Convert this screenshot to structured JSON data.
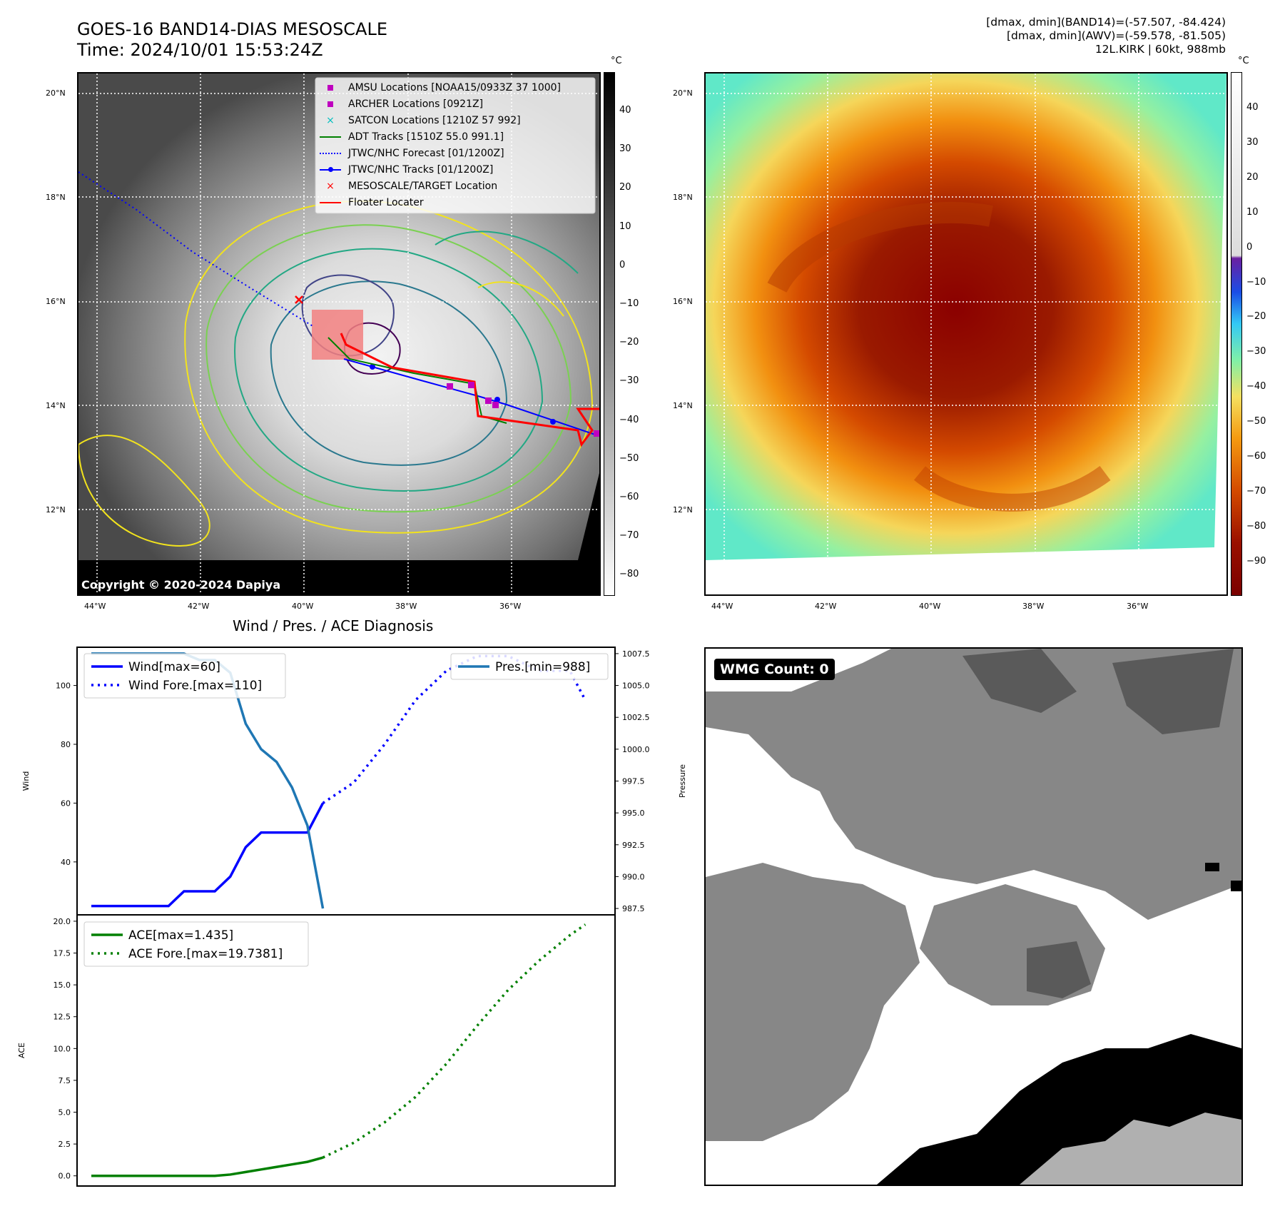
{
  "header": {
    "title_line1": "GOES-16 BAND14-DIAS MESOSCALE",
    "title_line2": "Time: 2024/10/01 15:53:24Z",
    "info_line1": "[dmax, dmin](BAND14)=(-57.507, -84.424)",
    "info_line2": "[dmax, dmin](AWV)=(-59.578, -81.505)",
    "info_line3": "12L.KIRK | 60kt, 988mb"
  },
  "map_left": {
    "legend": [
      {
        "label": "AMSU Locations [NOAA15/0933Z 37 1000]",
        "marker": "square",
        "color": "#bf00bf"
      },
      {
        "label": "ARCHER Locations [0921Z]",
        "marker": "square",
        "color": "#bf00bf"
      },
      {
        "label": "SATCON Locations [1210Z 57 992]",
        "marker": "x",
        "color": "#00bfbf"
      },
      {
        "label": "ADT Tracks [1510Z 55.0 991.1]",
        "marker": "line",
        "color": "#008000"
      },
      {
        "label": "JTWC/NHC Forecast [01/1200Z]",
        "marker": "dotted",
        "color": "#0000ff"
      },
      {
        "label": "JTWC/NHC Tracks [01/1200Z]",
        "marker": "line-dot",
        "color": "#0000ff"
      },
      {
        "label": "MESOSCALE/TARGET Location",
        "marker": "x",
        "color": "#ff0000"
      },
      {
        "label": "Floater Locater",
        "marker": "line",
        "color": "#ff0000"
      }
    ],
    "copyright": "Copyright © 2020-2024 Dapiya",
    "colorbar_unit": "°C",
    "colorbar_ticks": [
      "40",
      "30",
      "20",
      "10",
      "0",
      "−10",
      "−20",
      "−30",
      "−40",
      "−50",
      "−60",
      "−70",
      "−80"
    ]
  },
  "map_right": {
    "colorbar_unit": "°C",
    "colorbar_ticks": [
      "40",
      "30",
      "20",
      "10",
      "0",
      "−10",
      "−20",
      "−30",
      "−40",
      "−50",
      "−60",
      "−70",
      "−80",
      "−90"
    ]
  },
  "map_axes": {
    "lat_labels": [
      "20°N",
      "18°N",
      "16°N",
      "14°N",
      "12°N"
    ],
    "lon_labels": [
      "44°W",
      "42°W",
      "40°W",
      "38°W",
      "36°W"
    ]
  },
  "wmg": {
    "label": "WMG Count: 0"
  },
  "chart_data": [
    {
      "type": "line",
      "title": "Wind / Pres. / ACE Diagnosis",
      "ylabel": "Wind",
      "y2label": "Pressure",
      "ylim": [
        22,
        113
      ],
      "y2lim": [
        987,
        1008
      ],
      "yticks": [
        40,
        60,
        80,
        100
      ],
      "y2ticks": [
        987.5,
        990.0,
        992.5,
        995.0,
        997.5,
        1000.0,
        1002.5,
        1005.0,
        1007.5
      ],
      "legend_left": [
        "Wind[max=60]",
        "Wind Fore.[max=110]"
      ],
      "legend_right": [
        "Pres.[min=988]"
      ],
      "series": [
        {
          "name": "Wind[max=60]",
          "axis": "left",
          "style": "solid",
          "color": "#0000ff",
          "x": [
            0,
            1,
            2,
            3,
            4,
            5,
            6,
            7,
            8,
            9,
            10,
            11,
            12,
            13,
            14,
            15
          ],
          "y": [
            25,
            25,
            25,
            25,
            25,
            25,
            30,
            30,
            30,
            35,
            45,
            50,
            50,
            50,
            50,
            60
          ]
        },
        {
          "name": "Wind Fore.[max=110]",
          "axis": "left",
          "style": "dotted",
          "color": "#0000ff",
          "x": [
            15,
            17,
            19,
            21,
            23,
            25,
            27,
            29,
            31,
            32
          ],
          "y": [
            60,
            67,
            80,
            95,
            105,
            110,
            110,
            105,
            105,
            95
          ]
        },
        {
          "name": "Pres.[min=988]",
          "axis": "right",
          "style": "solid",
          "color": "#1f77b4",
          "x": [
            0,
            1,
            2,
            3,
            4,
            5,
            6,
            7,
            8,
            9,
            10,
            11,
            12,
            13,
            14,
            15
          ],
          "y": [
            1007.5,
            1007.5,
            1007.5,
            1007.5,
            1007.5,
            1007.5,
            1007.5,
            1007,
            1007,
            1006,
            1002,
            1000,
            999,
            997,
            994,
            987.5
          ]
        }
      ]
    },
    {
      "type": "line",
      "ylabel": "ACE",
      "ylim": [
        -0.8,
        20.5
      ],
      "yticks": [
        0.0,
        2.5,
        5.0,
        7.5,
        10.0,
        12.5,
        15.0,
        17.5,
        20.0
      ],
      "legend": [
        "ACE[max=1.435]",
        "ACE Fore.[max=19.7381]"
      ],
      "series": [
        {
          "name": "ACE[max=1.435]",
          "style": "solid",
          "color": "#008000",
          "x": [
            0,
            1,
            2,
            3,
            4,
            5,
            6,
            7,
            8,
            9,
            10,
            11,
            12,
            13,
            14,
            15
          ],
          "y": [
            0,
            0,
            0,
            0,
            0,
            0,
            0,
            0,
            0,
            0.1,
            0.3,
            0.5,
            0.7,
            0.9,
            1.1,
            1.435
          ]
        },
        {
          "name": "ACE Fore.[max=19.7381]",
          "style": "dotted",
          "color": "#008000",
          "x": [
            15,
            17,
            19,
            21,
            23,
            25,
            27,
            29,
            31,
            32
          ],
          "y": [
            1.435,
            2.6,
            4.2,
            6.2,
            8.8,
            11.8,
            14.6,
            16.9,
            18.9,
            19.7381
          ]
        }
      ]
    }
  ]
}
